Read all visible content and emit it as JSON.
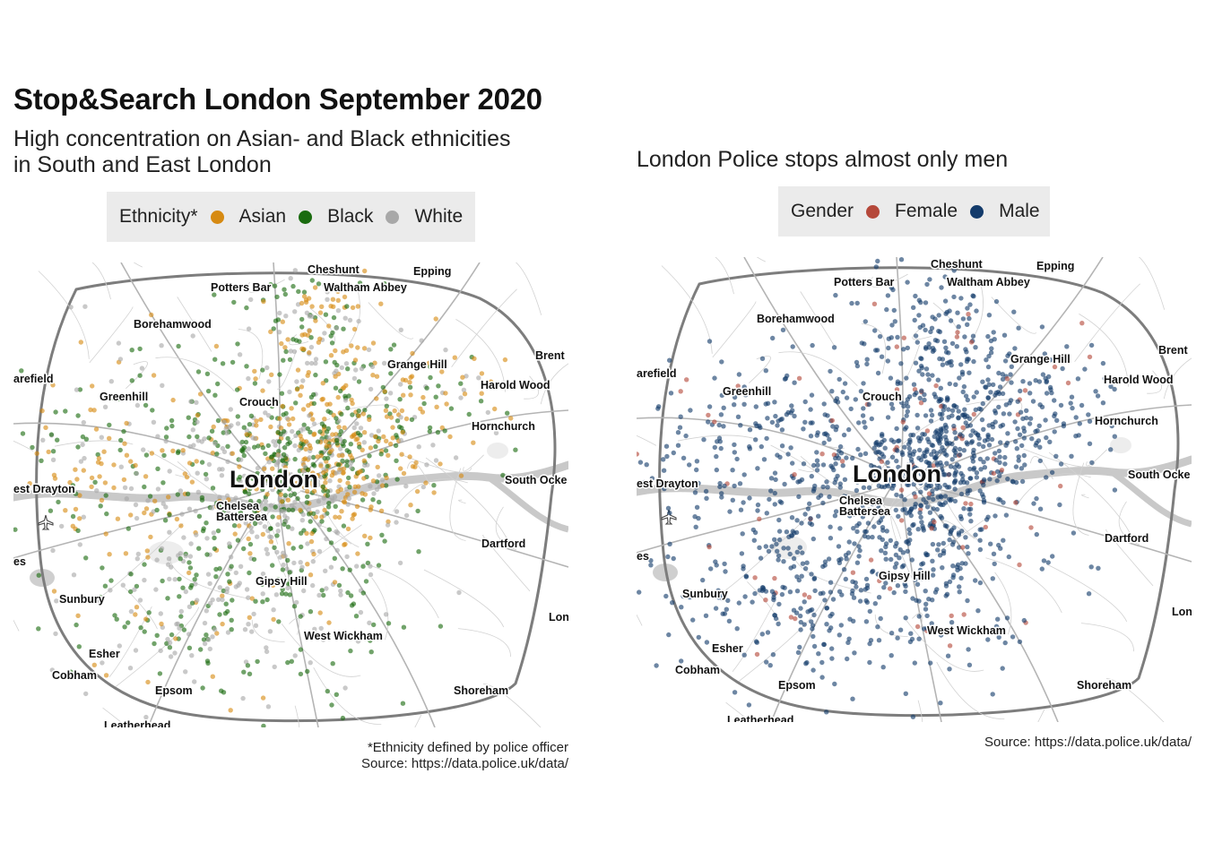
{
  "title": "Stop&Search London September 2020",
  "left_panel": {
    "subtitle": "High concentration on Asian- and Black ethnicities in South and East London",
    "legend": {
      "title": "Ethnicity*",
      "items": [
        {
          "label": "Asian",
          "color": "#d68a12"
        },
        {
          "label": "Black",
          "color": "#1a6b0f"
        },
        {
          "label": "White",
          "color": "#a8a8a8"
        }
      ]
    },
    "caption_line1": "*Ethnicity defined by police officer",
    "caption_line2": "Source: https://data.police.uk/data/"
  },
  "right_panel": {
    "subtitle": "London Police stops almost only men",
    "legend": {
      "title": "Gender",
      "items": [
        {
          "label": "Female",
          "color": "#b5483a"
        },
        {
          "label": "Male",
          "color": "#143b6b"
        }
      ]
    },
    "caption_line1": "Source: https://data.police.uk/data/"
  },
  "map_labels": {
    "cheshunt": "Cheshunt",
    "epping": "Epping",
    "potters_bar": "Potters Bar",
    "waltham_abbey": "Waltham Abbey",
    "borehamwood": "Borehamwood",
    "brent": "Brent",
    "grange_hill": "Grange Hill",
    "harefield": "arefield",
    "harold_wood": "Harold Wood",
    "greenhill": "Greenhill",
    "crouch": "Crouch",
    "hornchurch": "Hornchurch",
    "london": "London",
    "south_ockendon": "South Ocke",
    "west_drayton": "est Drayton",
    "chelsea": "Chelsea",
    "battersea": "Battersea",
    "dartford": "Dartford",
    "es": "es",
    "sunbury": "Sunbury",
    "gipsy_hill": "Gipsy Hill",
    "lon": "Lon",
    "west_wickham": "West Wickham",
    "esher": "Esher",
    "cobham": "Cobham",
    "epsom": "Epsom",
    "shoreham": "Shoreham",
    "leatherhead": "Leatherhead"
  }
}
